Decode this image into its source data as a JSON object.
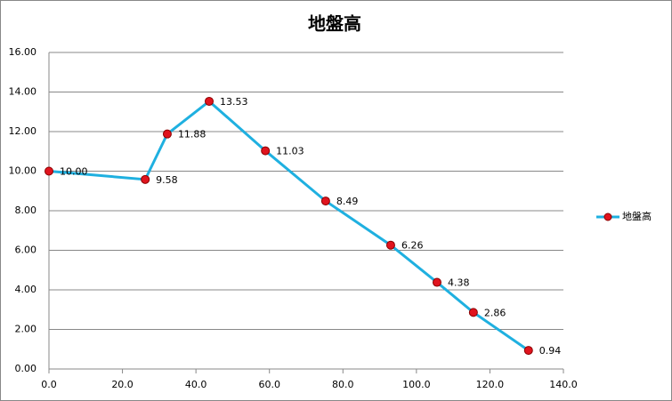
{
  "chart_data": {
    "type": "line",
    "title": "地盤高",
    "x": [
      0,
      26.2,
      32.2,
      43.6,
      58.9,
      75.3,
      93.0,
      105.6,
      115.5,
      130.5
    ],
    "series": [
      {
        "name": "地盤高",
        "color": "#1fb0e0",
        "marker_color": "#e0141e",
        "values": [
          10.0,
          9.58,
          11.88,
          13.53,
          11.03,
          8.49,
          6.26,
          4.38,
          2.86,
          0.94
        ],
        "value_labels": [
          "10.00",
          "9.58",
          "11.88",
          "13.53",
          "11.03",
          "8.49",
          "6.26",
          "4.38",
          "2.86",
          "0.94"
        ]
      }
    ],
    "xlim": [
      0,
      140
    ],
    "xticks": [
      {
        "value": 0,
        "label": "0.0"
      },
      {
        "value": 20,
        "label": "20.0"
      },
      {
        "value": 40,
        "label": "40.0"
      },
      {
        "value": 60,
        "label": "60.0"
      },
      {
        "value": 80,
        "label": "80.0"
      },
      {
        "value": 100,
        "label": "100.0"
      },
      {
        "value": 120,
        "label": "120.0"
      },
      {
        "value": 140,
        "label": "140.0"
      }
    ],
    "ylim": [
      0,
      16
    ],
    "yticks": [
      {
        "value": 0,
        "label": "0.00"
      },
      {
        "value": 2,
        "label": "2.00"
      },
      {
        "value": 4,
        "label": "4.00"
      },
      {
        "value": 6,
        "label": "6.00"
      },
      {
        "value": 8,
        "label": "8.00"
      },
      {
        "value": 10,
        "label": "10.00"
      },
      {
        "value": 12,
        "label": "12.00"
      },
      {
        "value": 14,
        "label": "14.00"
      },
      {
        "value": 16,
        "label": "16.00"
      }
    ],
    "grid": true,
    "legend": "right"
  }
}
